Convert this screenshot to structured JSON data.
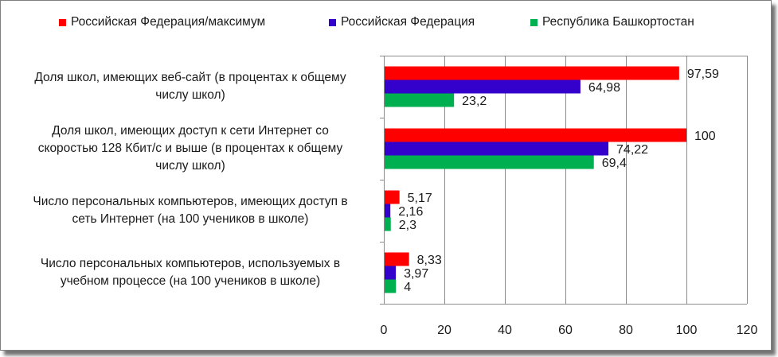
{
  "chart_data": {
    "type": "bar",
    "orientation": "horizontal",
    "categories": [
      "Доля школ, имеющих веб-сайт (в  процентах к общему числу школ)",
      "Доля школ, имеющих доступ к сети Интернет со скоростью 128 Кбит/с и выше (в  процентах к общему числу школ)",
      "Число персональных компьютеров, имеющих доступ в сеть Интернет (на 100 учеников в школе)",
      "Число персональных компьютеров, используемых в учебном процессе (на 100 учеников в школе)"
    ],
    "category_lines": [
      [
        "Доля школ, имеющих веб-сайт (в  процентах к общему",
        "числу школ)"
      ],
      [
        "Доля школ, имеющих доступ к сети Интернет со",
        "скоростью 128 Кбит/с и выше (в  процентах к общему",
        "числу школ)"
      ],
      [
        "Число персональных компьютеров, имеющих доступ в",
        "сеть Интернет (на 100 учеников в школе)"
      ],
      [
        "Число персональных компьютеров, используемых в",
        "учебном процессе (на 100 учеников в школе)"
      ]
    ],
    "series": [
      {
        "name": "Российская Федерация/максимум",
        "color": "#ff0000",
        "values": [
          97.59,
          100,
          5.17,
          8.33
        ],
        "labels": [
          "97,59",
          "100",
          "5,17",
          "8,33"
        ]
      },
      {
        "name": "Российская Федерация",
        "color": "#3300cc",
        "values": [
          64.98,
          74.22,
          2.16,
          3.97
        ],
        "labels": [
          "64,98",
          "74,22",
          "2,16",
          "3,97"
        ]
      },
      {
        "name": "Республика Башкортостан",
        "color": "#00b050",
        "values": [
          23.2,
          69.4,
          2.3,
          4
        ],
        "labels": [
          "23,2",
          "69,4",
          "2,3",
          "4"
        ]
      }
    ],
    "xlim": [
      0,
      120
    ],
    "xticks": [
      "0",
      "20",
      "40",
      "60",
      "80",
      "100",
      "120"
    ],
    "title": "",
    "xlabel": "",
    "ylabel": "",
    "grid": true,
    "legend": "top"
  }
}
